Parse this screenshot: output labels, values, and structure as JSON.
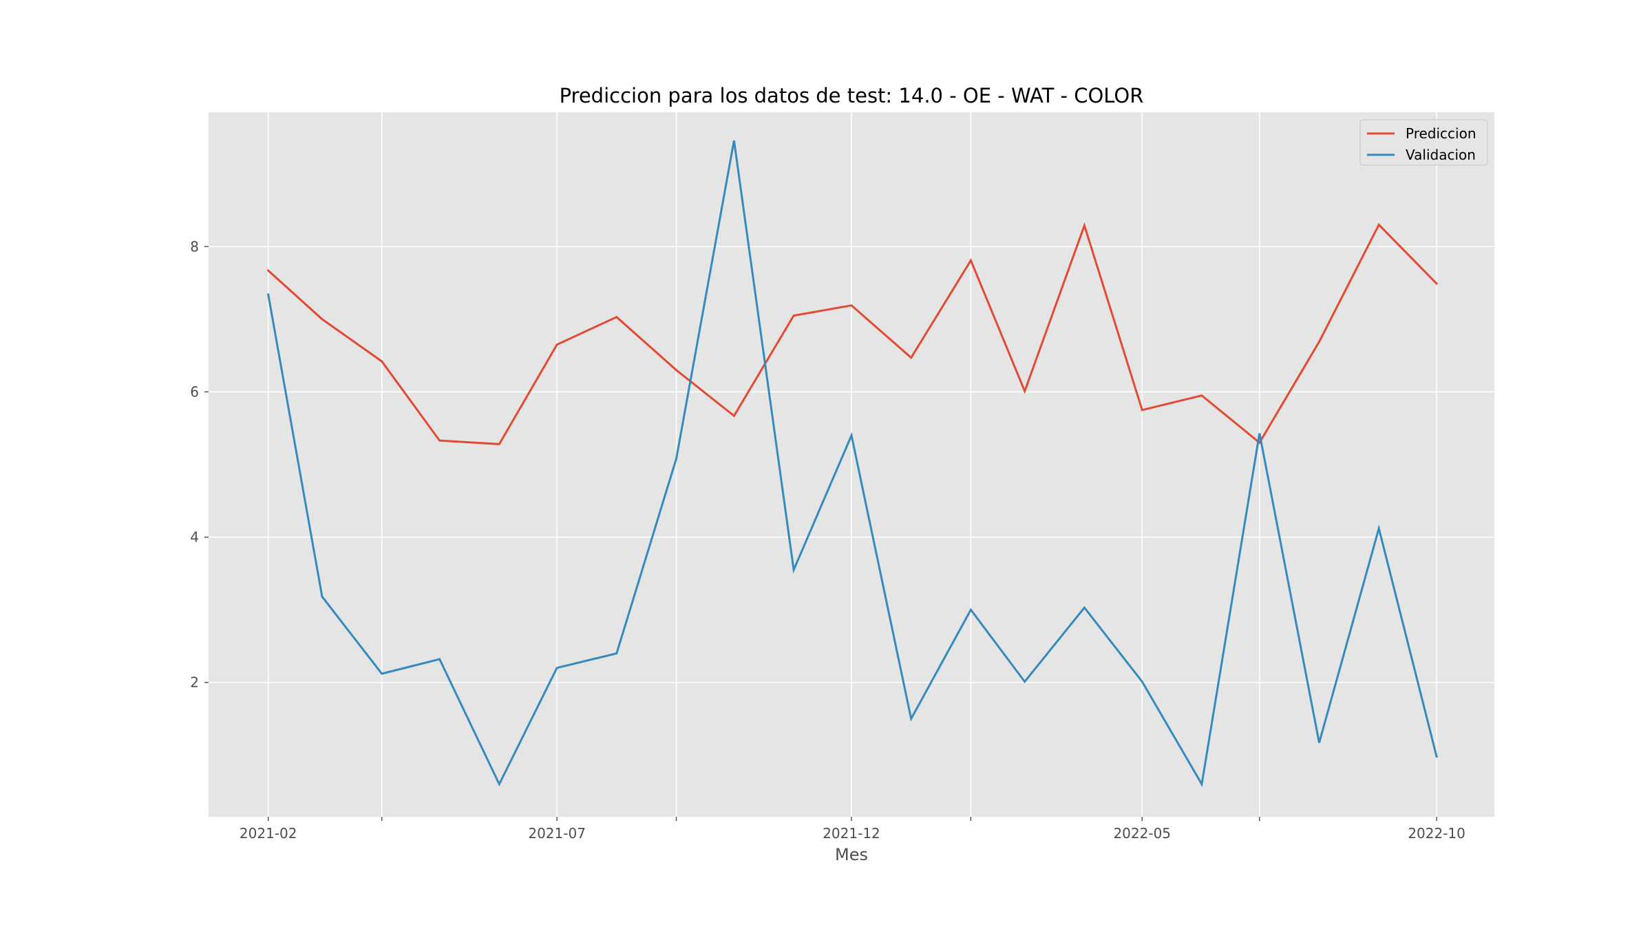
{
  "chart_data": {
    "type": "line",
    "title": "Prediccion para los datos de test: 14.0 - OE - WAT - COLOR",
    "xlabel": "Mes",
    "ylabel": "",
    "x": [
      "2021-02",
      "2021-03",
      "2021-04",
      "2021-05",
      "2021-06",
      "2021-07",
      "2021-08",
      "2021-09",
      "2021-10",
      "2021-11",
      "2021-12",
      "2022-01",
      "2022-02",
      "2022-03",
      "2022-04",
      "2022-05",
      "2022-06",
      "2022-07",
      "2022-08",
      "2022-09",
      "2022-10"
    ],
    "xticks": [
      {
        "value": "2021-02",
        "label": "2021-02"
      },
      {
        "value": "2021-04",
        "label": ""
      },
      {
        "value": "2021-07",
        "label": "2021-07"
      },
      {
        "value": "2021-09",
        "label": ""
      },
      {
        "value": "2021-12",
        "label": "2021-12"
      },
      {
        "value": "2022-02",
        "label": ""
      },
      {
        "value": "2022-05",
        "label": "2022-05"
      },
      {
        "value": "2022-07",
        "label": ""
      },
      {
        "value": "2022-10",
        "label": "2022-10"
      }
    ],
    "yticks": [
      2,
      4,
      6,
      8
    ],
    "xlim": [
      "2021-01-01",
      "2022-10-31"
    ],
    "ylim": [
      0.15,
      9.85
    ],
    "grid": true,
    "legend_position": "top-right",
    "background_color": "#e5e5e5",
    "series": [
      {
        "name": "Prediccion",
        "color": "#e24a33",
        "values": [
          7.67,
          7.0,
          6.42,
          5.33,
          5.28,
          6.65,
          7.03,
          6.3,
          5.67,
          7.05,
          7.19,
          6.47,
          7.81,
          6.01,
          8.29,
          5.75,
          5.95,
          5.3,
          6.69,
          8.3,
          7.49
        ]
      },
      {
        "name": "Validacion",
        "color": "#348abd",
        "values": [
          7.34,
          3.18,
          2.12,
          2.32,
          0.6,
          2.2,
          2.4,
          5.08,
          9.46,
          3.55,
          5.4,
          1.5,
          3.0,
          2.01,
          3.03,
          2.01,
          0.6,
          5.43,
          1.17,
          4.12,
          0.98
        ]
      }
    ]
  }
}
